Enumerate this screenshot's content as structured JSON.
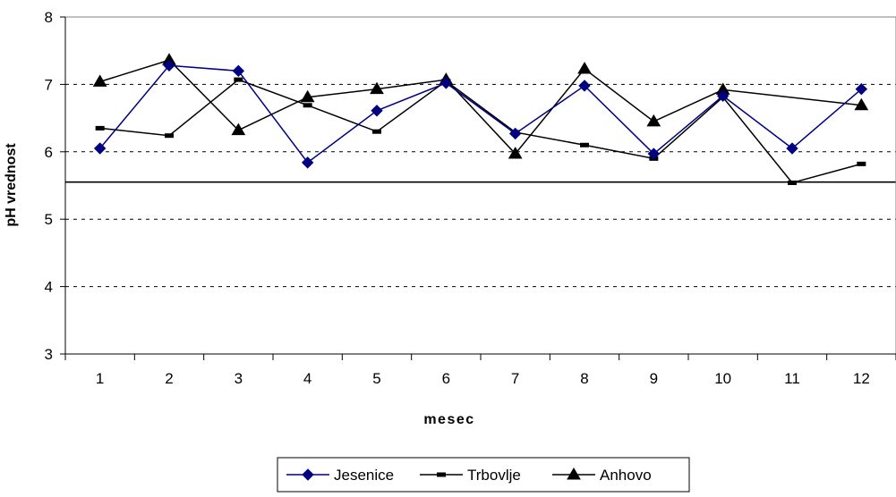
{
  "chart_data": {
    "type": "line",
    "title": "",
    "xlabel": "mesec",
    "ylabel": "pH vrednost",
    "categories": [
      "1",
      "2",
      "3",
      "4",
      "5",
      "6",
      "7",
      "8",
      "9",
      "10",
      "11",
      "12"
    ],
    "ylim": [
      3,
      8
    ],
    "yticks": [
      "3",
      "4",
      "5",
      "6",
      "7",
      "8"
    ],
    "grid": "horizontal dashed",
    "reference_line": 5.55,
    "legend_position": "bottom",
    "series": [
      {
        "name": "Jesenice",
        "color": "#000080",
        "marker": "diamond",
        "values": [
          6.05,
          7.28,
          7.2,
          5.84,
          6.61,
          7.02,
          6.27,
          6.98,
          5.97,
          6.83,
          6.05,
          6.93
        ]
      },
      {
        "name": "Trbovlje",
        "color": "#000000",
        "marker": "dash",
        "values": [
          6.35,
          6.24,
          7.07,
          6.69,
          6.3,
          7.05,
          6.29,
          6.1,
          5.9,
          6.81,
          5.54,
          5.82
        ]
      },
      {
        "name": "Anhovo",
        "color": "#000000",
        "marker": "triangle",
        "values": [
          7.04,
          7.36,
          6.32,
          6.81,
          6.93,
          7.07,
          5.97,
          7.23,
          6.45,
          6.92,
          null,
          6.69
        ]
      }
    ]
  }
}
